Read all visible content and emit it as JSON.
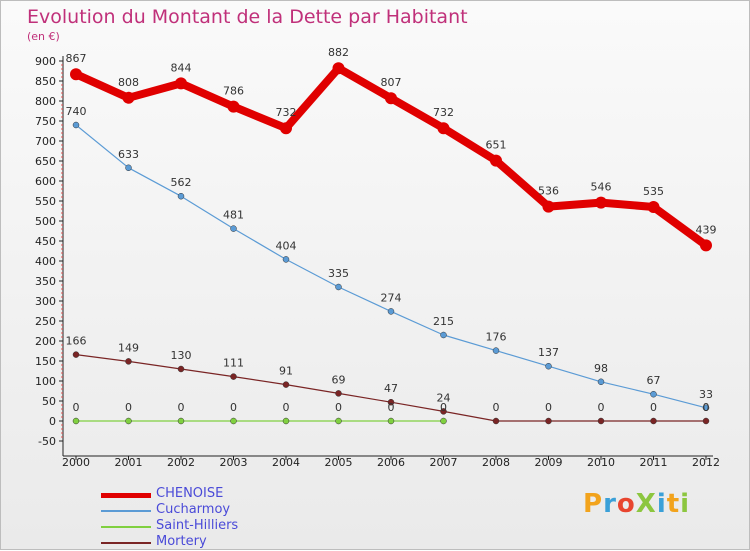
{
  "header": {
    "title": "Evolution du Montant de la Dette par Habitant",
    "subtitle": "(en €)"
  },
  "logo": {
    "text": "ProXiti",
    "colors": [
      "#f2a31c",
      "#3aa0d8",
      "#e8452f",
      "#8cc63f",
      "#3aa0d8",
      "#f2a31c",
      "#8cc63f"
    ]
  },
  "chart_data": {
    "type": "line",
    "title": "Evolution du Montant de la Dette par Habitant",
    "ylabel": "(en €)",
    "x": [
      "2000",
      "2001",
      "2002",
      "2003",
      "2004",
      "2005",
      "2006",
      "2007",
      "2008",
      "2009",
      "2010",
      "2011",
      "2012"
    ],
    "ylim": [
      -50,
      900
    ],
    "yticks": [
      -50,
      0,
      50,
      100,
      150,
      200,
      250,
      300,
      350,
      400,
      450,
      500,
      550,
      600,
      650,
      700,
      750,
      800,
      850,
      900
    ],
    "grid": false,
    "legend_position": "bottom-left",
    "series": [
      {
        "name": "CHENOISE",
        "color": "#e00000",
        "values": [
          867,
          808,
          844,
          786,
          732,
          882,
          807,
          732,
          651,
          536,
          546,
          535,
          439
        ],
        "labels": [
          "867",
          "808",
          "844",
          "786",
          "732",
          "882",
          "807",
          "732",
          "651",
          "536",
          "546",
          "535",
          "439"
        ]
      },
      {
        "name": "Cucharmoy",
        "color": "#5b9bd5",
        "values": [
          740,
          633,
          562,
          481,
          404,
          335,
          274,
          215,
          176,
          137,
          98,
          67,
          33
        ],
        "labels": [
          "740",
          "633",
          "562",
          "481",
          "404",
          "335",
          "274",
          "215",
          "176",
          "137",
          "98",
          "67",
          "33"
        ]
      },
      {
        "name": "Saint-Hilliers",
        "color": "#80d040",
        "values": [
          0,
          0,
          0,
          0,
          0,
          0,
          0,
          0,
          null,
          null,
          null,
          null,
          null
        ],
        "labels": [
          "0",
          "0",
          "0",
          "0",
          "0",
          "0",
          "0",
          "0",
          "",
          "",
          "",
          "",
          ""
        ]
      },
      {
        "name": "Mortery",
        "color": "#7a2525",
        "values": [
          166,
          149,
          130,
          111,
          91,
          69,
          47,
          24,
          0,
          0,
          0,
          0,
          0
        ],
        "labels": [
          "166",
          "149",
          "130",
          "111",
          "91",
          "69",
          "47",
          "24",
          "0",
          "0",
          "0",
          "0",
          "0"
        ]
      }
    ]
  }
}
